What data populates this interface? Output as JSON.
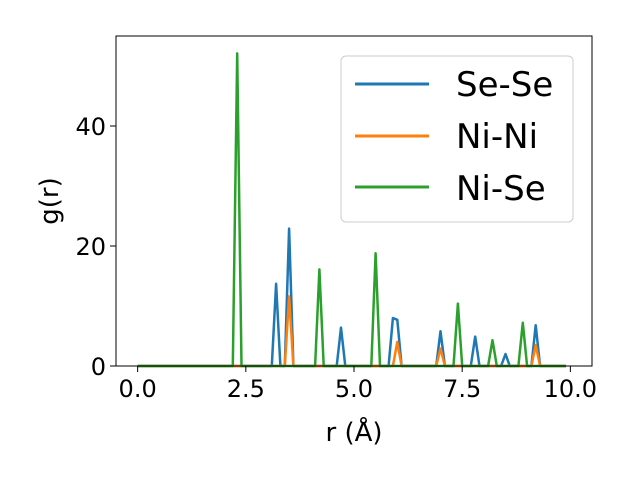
{
  "chart_data": {
    "type": "line",
    "xlabel": "r (Å)",
    "ylabel": "g(r)",
    "xlim": [
      -0.5,
      10.5
    ],
    "ylim": [
      0,
      55
    ],
    "xticks": [
      0.0,
      2.5,
      5.0,
      7.5,
      10.0
    ],
    "xtick_labels": [
      "0.0",
      "2.5",
      "5.0",
      "7.5",
      "10.0"
    ],
    "yticks": [
      0,
      20,
      40
    ],
    "ytick_labels": [
      "0",
      "20",
      "40"
    ],
    "legend": "top-right",
    "grid": false,
    "series": [
      {
        "name": "Se-Se",
        "color": "#1f77b4",
        "points": [
          [
            0,
            0
          ],
          [
            3.1,
            0
          ],
          [
            3.2,
            13.7
          ],
          [
            3.3,
            0
          ],
          [
            3.4,
            0
          ],
          [
            3.5,
            22.9
          ],
          [
            3.6,
            0
          ],
          [
            4.6,
            0
          ],
          [
            4.7,
            6.4
          ],
          [
            4.8,
            0
          ],
          [
            5.8,
            0
          ],
          [
            5.9,
            8.0
          ],
          [
            6.0,
            7.7
          ],
          [
            6.1,
            0
          ],
          [
            6.9,
            0
          ],
          [
            7.0,
            5.8
          ],
          [
            7.1,
            0
          ],
          [
            7.7,
            0
          ],
          [
            7.8,
            4.9
          ],
          [
            7.9,
            0
          ],
          [
            8.4,
            0
          ],
          [
            8.5,
            2.0
          ],
          [
            8.6,
            0
          ],
          [
            9.1,
            0
          ],
          [
            9.2,
            6.8
          ],
          [
            9.3,
            0
          ],
          [
            9.9,
            0
          ]
        ]
      },
      {
        "name": "Ni-Ni",
        "color": "#ff7f0e",
        "points": [
          [
            0,
            0
          ],
          [
            3.4,
            0
          ],
          [
            3.5,
            11.6
          ],
          [
            3.6,
            0
          ],
          [
            5.9,
            0
          ],
          [
            6.0,
            4.0
          ],
          [
            6.1,
            0
          ],
          [
            6.9,
            0
          ],
          [
            7.0,
            2.9
          ],
          [
            7.1,
            0
          ],
          [
            9.1,
            0
          ],
          [
            9.2,
            3.5
          ],
          [
            9.3,
            0
          ],
          [
            9.9,
            0
          ]
        ]
      },
      {
        "name": "Ni-Se",
        "color": "#2ca02c",
        "points": [
          [
            0,
            0
          ],
          [
            2.2,
            0
          ],
          [
            2.3,
            52.1
          ],
          [
            2.4,
            0
          ],
          [
            4.1,
            0
          ],
          [
            4.2,
            16.1
          ],
          [
            4.3,
            0
          ],
          [
            5.4,
            0
          ],
          [
            5.5,
            18.8
          ],
          [
            5.6,
            0
          ],
          [
            7.3,
            0
          ],
          [
            7.4,
            10.4
          ],
          [
            7.5,
            0
          ],
          [
            8.1,
            0
          ],
          [
            8.2,
            4.3
          ],
          [
            8.3,
            0
          ],
          [
            8.8,
            0
          ],
          [
            8.9,
            7.2
          ],
          [
            9.0,
            0
          ],
          [
            9.9,
            0
          ]
        ]
      }
    ]
  }
}
